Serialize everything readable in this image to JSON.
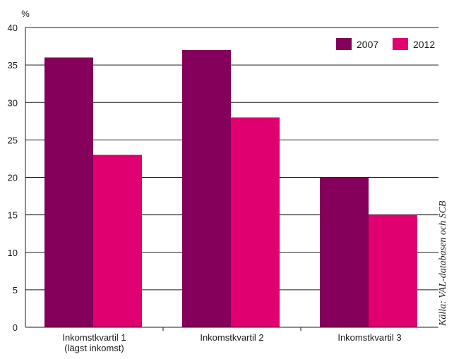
{
  "chart_data": {
    "type": "bar",
    "unit_label": "%",
    "categories": [
      [
        "Inkomstkvartil 1",
        "(lägst inkomst)"
      ],
      [
        "Inkomstkvartil 2"
      ],
      [
        "Inkomstkvartil 3"
      ]
    ],
    "series": [
      {
        "name": "2007",
        "color": "#84005a",
        "values": [
          36,
          37,
          20
        ]
      },
      {
        "name": "2012",
        "color": "#e0006f",
        "values": [
          23,
          28,
          15
        ]
      }
    ],
    "ylim": [
      0,
      40
    ],
    "yticks": [
      0,
      5,
      10,
      15,
      20,
      25,
      30,
      35,
      40
    ],
    "grid": true,
    "legend_position": "top-right",
    "source": "Källa: VAL-databasen och SCB"
  }
}
